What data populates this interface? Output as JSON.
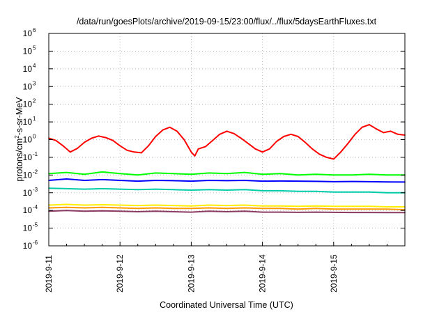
{
  "chart_data": {
    "type": "line",
    "title": "/data/run/goesPlots/archive/2019-09-15/23:00/flux/../flux/5daysEarthFluxes.txt",
    "xlabel": "Coordinated Universal Time (UTC)",
    "ylabel": "protons/cm²-s-sr-MeV",
    "ylabel_parts": {
      "a": "protons/cm",
      "sup": "2",
      "b": "-s-sr-MeV"
    },
    "y_scale": "log",
    "ylim": [
      1e-06,
      1000000.0
    ],
    "y_ticks": [
      {
        "exp": "-6",
        "value": 1e-06
      },
      {
        "exp": "-5",
        "value": 1e-05
      },
      {
        "exp": "-4",
        "value": 0.0001
      },
      {
        "exp": "-3",
        "value": 0.001
      },
      {
        "exp": "-2",
        "value": 0.01
      },
      {
        "exp": "-1",
        "value": 0.1
      },
      {
        "exp": "0",
        "value": 1
      },
      {
        "exp": "1",
        "value": 10
      },
      {
        "exp": "2",
        "value": 100
      },
      {
        "exp": "3",
        "value": 1000
      },
      {
        "exp": "4",
        "value": 10000
      },
      {
        "exp": "5",
        "value": 100000
      },
      {
        "exp": "6",
        "value": 1000000
      }
    ],
    "y_tick_base": "10",
    "x_ticks": [
      "2019-9-11",
      "2019-9-12",
      "2019-9-13",
      "2019-9-14",
      "2019-9-15"
    ],
    "xlim_days": [
      0,
      5
    ],
    "grid": true,
    "series": [
      {
        "color": "#ff0000",
        "x": [
          0,
          0.1,
          0.2,
          0.3,
          0.4,
          0.5,
          0.6,
          0.7,
          0.8,
          0.9,
          1.0,
          1.1,
          1.2,
          1.3,
          1.4,
          1.5,
          1.6,
          1.7,
          1.8,
          1.9,
          2.0,
          2.05,
          2.1,
          2.2,
          2.3,
          2.4,
          2.5,
          2.6,
          2.7,
          2.8,
          2.9,
          3.0,
          3.1,
          3.2,
          3.3,
          3.4,
          3.5,
          3.6,
          3.7,
          3.8,
          3.9,
          4.0,
          4.1,
          4.2,
          4.3,
          4.4,
          4.5,
          4.6,
          4.7,
          4.8,
          4.9,
          5.0
        ],
        "values": [
          1.2,
          0.9,
          0.45,
          0.2,
          0.32,
          0.7,
          1.2,
          1.6,
          1.3,
          0.9,
          0.45,
          0.25,
          0.2,
          0.18,
          0.45,
          1.5,
          3.5,
          5.0,
          3.0,
          1.0,
          0.2,
          0.12,
          0.3,
          0.4,
          0.9,
          2.0,
          3.0,
          2.2,
          1.2,
          0.6,
          0.3,
          0.2,
          0.3,
          0.8,
          1.5,
          2.0,
          1.5,
          0.7,
          0.3,
          0.15,
          0.1,
          0.08,
          0.2,
          0.6,
          2.0,
          5.0,
          7.0,
          4.0,
          2.5,
          3.0,
          2.0,
          1.8
        ]
      },
      {
        "color": "#00ff00",
        "x": [
          0,
          0.25,
          0.5,
          0.75,
          1.0,
          1.25,
          1.5,
          1.75,
          2.0,
          2.25,
          2.5,
          2.75,
          3.0,
          3.25,
          3.5,
          3.75,
          4.0,
          4.25,
          4.5,
          4.75,
          5.0
        ],
        "values": [
          0.012,
          0.014,
          0.011,
          0.015,
          0.012,
          0.01,
          0.013,
          0.012,
          0.011,
          0.013,
          0.012,
          0.014,
          0.011,
          0.012,
          0.01,
          0.011,
          0.01,
          0.01,
          0.011,
          0.01,
          0.01
        ]
      },
      {
        "color": "#0000ff",
        "x": [
          0,
          0.25,
          0.5,
          0.75,
          1.0,
          1.25,
          1.5,
          1.75,
          2.0,
          2.25,
          2.5,
          2.75,
          3.0,
          3.25,
          3.5,
          3.75,
          4.0,
          4.25,
          4.5,
          4.75,
          5.0
        ],
        "values": [
          0.005,
          0.006,
          0.005,
          0.0055,
          0.005,
          0.0045,
          0.005,
          0.0048,
          0.0045,
          0.005,
          0.0048,
          0.005,
          0.0045,
          0.0046,
          0.0045,
          0.0044,
          0.0042,
          0.0043,
          0.0042,
          0.0041,
          0.004
        ]
      },
      {
        "color": "#00ccaa",
        "x": [
          0,
          0.25,
          0.5,
          0.75,
          1.0,
          1.25,
          1.5,
          1.75,
          2.0,
          2.25,
          2.5,
          2.75,
          3.0,
          3.25,
          3.5,
          3.75,
          4.0,
          4.25,
          4.5,
          4.75,
          5.0
        ],
        "values": [
          0.0018,
          0.0017,
          0.0016,
          0.0017,
          0.0016,
          0.0015,
          0.0016,
          0.0015,
          0.0014,
          0.0015,
          0.0014,
          0.0015,
          0.0013,
          0.0013,
          0.0012,
          0.0012,
          0.0011,
          0.0011,
          0.0011,
          0.001,
          0.001
        ]
      },
      {
        "color": "#ffee00",
        "x": [
          0,
          0.25,
          0.5,
          0.75,
          1.0,
          1.25,
          1.5,
          1.75,
          2.0,
          2.25,
          2.5,
          2.75,
          3.0,
          3.25,
          3.5,
          3.75,
          4.0,
          4.25,
          4.5,
          4.75,
          5.0
        ],
        "values": [
          0.0002,
          0.00022,
          0.0002,
          0.00021,
          0.0002,
          0.00019,
          0.0002,
          0.00019,
          0.00018,
          0.0002,
          0.00019,
          0.0002,
          0.00018,
          0.00018,
          0.00017,
          0.00018,
          0.00017,
          0.00017,
          0.00017,
          0.00016,
          0.00016
        ]
      },
      {
        "color": "#ff9900",
        "x": [
          0,
          0.25,
          0.5,
          0.75,
          1.0,
          1.25,
          1.5,
          1.75,
          2.0,
          2.25,
          2.5,
          2.75,
          3.0,
          3.25,
          3.5,
          3.75,
          4.0,
          4.25,
          4.5,
          4.75,
          5.0
        ],
        "values": [
          0.00014,
          0.00015,
          0.00014,
          0.00015,
          0.00014,
          0.00013,
          0.00014,
          0.00013,
          0.00013,
          0.00014,
          0.00013,
          0.00014,
          0.00013,
          0.00013,
          0.00012,
          0.00013,
          0.00012,
          0.00012,
          0.00012,
          0.00012,
          0.00011
        ]
      },
      {
        "color": "#8b3a62",
        "x": [
          0,
          0.25,
          0.5,
          0.75,
          1.0,
          1.25,
          1.5,
          1.75,
          2.0,
          2.25,
          2.5,
          2.75,
          3.0,
          3.25,
          3.5,
          3.75,
          4.0,
          4.25,
          4.5,
          4.75,
          5.0
        ],
        "values": [
          9e-05,
          0.0001,
          9e-05,
          9.5e-05,
          9e-05,
          8.5e-05,
          9e-05,
          8.5e-05,
          8e-05,
          9e-05,
          8.5e-05,
          9e-05,
          8e-05,
          8e-05,
          7.8e-05,
          8e-05,
          7.8e-05,
          7.7e-05,
          7.7e-05,
          7.6e-05,
          7.5e-05
        ]
      }
    ]
  }
}
